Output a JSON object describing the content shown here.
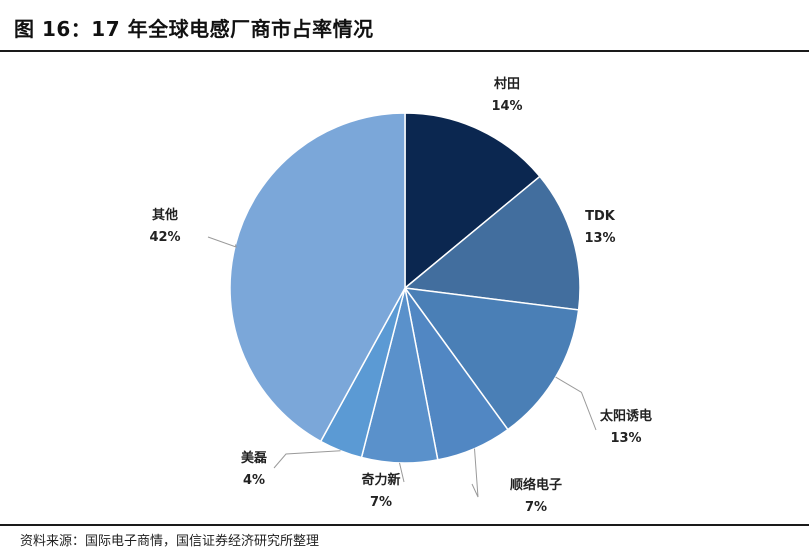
{
  "title": "图 16：17 年全球电感厂商市占率情况",
  "source": "资料来源：国际电子商情，国信证券经济研究所整理",
  "chart_data": {
    "type": "pie",
    "slices": [
      {
        "name": "村田",
        "value": 14,
        "label": "14%",
        "color": "#0b2750"
      },
      {
        "name": "TDK",
        "value": 13,
        "label": "13%",
        "color": "#426e9e"
      },
      {
        "name": "太阳诱电",
        "value": 13,
        "label": "13%",
        "color": "#4a7fb6"
      },
      {
        "name": "顺络电子",
        "value": 7,
        "label": "7%",
        "color": "#5187c3"
      },
      {
        "name": "奇力新",
        "value": 7,
        "label": "7%",
        "color": "#5a91cb"
      },
      {
        "name": "美磊",
        "value": 4,
        "label": "4%",
        "color": "#5b9ad4"
      },
      {
        "name": "其他",
        "value": 42,
        "label": "42%",
        "color": "#7ba7d9"
      }
    ]
  }
}
